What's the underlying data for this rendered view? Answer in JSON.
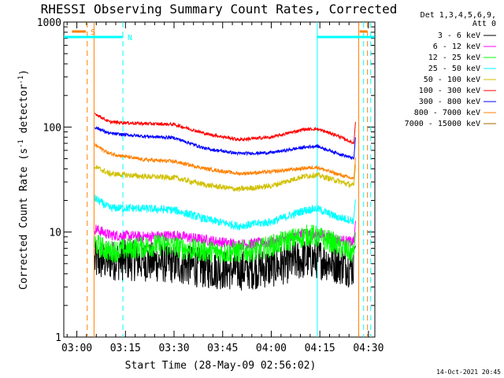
{
  "chart_data": {
    "type": "line",
    "title": "RHESSI Observing Summary Count Rates, Corrected",
    "xlabel": "Start Time (28-May-09 02:56:02)",
    "ylabel_parts": [
      "Corrected Count Rate (s",
      "-1",
      " detector",
      "-1",
      ")"
    ],
    "y_scale": "log",
    "ylim": [
      1,
      1000
    ],
    "y_ticks": [
      {
        "value": 1,
        "label": "1"
      },
      {
        "value": 10,
        "label": "10"
      },
      {
        "value": 100,
        "label": "100"
      },
      {
        "value": 1000,
        "label": "1000"
      }
    ],
    "xlim_minutes": [
      -4.03,
      91.97
    ],
    "x_ticks": [
      {
        "minutes": 0,
        "label": "03:00"
      },
      {
        "minutes": 15,
        "label": "03:15"
      },
      {
        "minutes": 30,
        "label": "03:30"
      },
      {
        "minutes": 45,
        "label": "03:45"
      },
      {
        "minutes": 60,
        "label": "04:00"
      },
      {
        "minutes": 75,
        "label": "04:15"
      },
      {
        "minutes": 90,
        "label": "04:30"
      }
    ],
    "legend_header": [
      "Det 1,3,4,5,6,9,",
      "Att 0"
    ],
    "legend_position": "right",
    "series": [
      {
        "name": "3 - 6 keV",
        "color": "#000000",
        "keypoints": [
          [
            5.5,
            5.2
          ],
          [
            10,
            5.4
          ],
          [
            20,
            5.3
          ],
          [
            30,
            5.0
          ],
          [
            40,
            4.5
          ],
          [
            50,
            4.3
          ],
          [
            60,
            4.6
          ],
          [
            70,
            5.5
          ],
          [
            75,
            5.6
          ],
          [
            80,
            5.0
          ],
          [
            85.5,
            4.6
          ]
        ],
        "noise": 0.45
      },
      {
        "name": "6 - 12 keV",
        "color": "#ff00ff",
        "keypoints": [
          [
            5.5,
            10.8
          ],
          [
            10,
            9.4
          ],
          [
            20,
            9.0
          ],
          [
            30,
            9.3
          ],
          [
            40,
            8.4
          ],
          [
            50,
            7.6
          ],
          [
            60,
            8.0
          ],
          [
            70,
            9.5
          ],
          [
            75,
            9.5
          ],
          [
            80,
            8.5
          ],
          [
            85.5,
            8.0
          ]
        ],
        "noise": 0.12
      },
      {
        "name": "12 - 25 keV",
        "color": "#00ff00",
        "keypoints": [
          [
            5.5,
            7.8
          ],
          [
            10,
            6.5
          ],
          [
            20,
            7.2
          ],
          [
            27,
            7.6
          ],
          [
            35,
            6.8
          ],
          [
            45,
            6.4
          ],
          [
            55,
            6.6
          ],
          [
            65,
            8.3
          ],
          [
            72,
            9.4
          ],
          [
            78,
            8.2
          ],
          [
            85.5,
            6.2
          ]
        ],
        "noise": 0.25
      },
      {
        "name": "25 - 50 keV",
        "color": "#00ffff",
        "keypoints": [
          [
            5.5,
            21.0
          ],
          [
            10,
            17.0
          ],
          [
            20,
            16.8
          ],
          [
            30,
            16.2
          ],
          [
            40,
            13.2
          ],
          [
            50,
            11.4
          ],
          [
            60,
            12.5
          ],
          [
            70,
            16.0
          ],
          [
            74,
            16.8
          ],
          [
            80,
            14.0
          ],
          [
            85.5,
            12.8
          ]
        ],
        "noise": 0.09
      },
      {
        "name": "50 - 100 keV",
        "color": "#d0c000",
        "keypoints": [
          [
            5.5,
            42.0
          ],
          [
            10,
            36.0
          ],
          [
            20,
            34.0
          ],
          [
            30,
            33.0
          ],
          [
            40,
            28.0
          ],
          [
            50,
            25.5
          ],
          [
            60,
            27.5
          ],
          [
            70,
            34.0
          ],
          [
            74,
            35.0
          ],
          [
            80,
            31.0
          ],
          [
            85.5,
            27.5
          ]
        ],
        "noise": 0.06
      },
      {
        "name": "100 - 300 keV",
        "color": "#ff0000",
        "keypoints": [
          [
            5.5,
            135.0
          ],
          [
            10,
            112.0
          ],
          [
            20,
            108.0
          ],
          [
            30,
            106.0
          ],
          [
            40,
            86.0
          ],
          [
            50,
            76.0
          ],
          [
            60,
            80.0
          ],
          [
            70,
            95.0
          ],
          [
            74,
            96.0
          ],
          [
            80,
            84.0
          ],
          [
            85.5,
            70.0
          ]
        ],
        "noise": 0.035
      },
      {
        "name": "300 - 800 keV",
        "color": "#0000ff",
        "keypoints": [
          [
            5.5,
            100.0
          ],
          [
            10,
            87.0
          ],
          [
            20,
            82.0
          ],
          [
            30,
            79.0
          ],
          [
            40,
            62.0
          ],
          [
            50,
            56.0
          ],
          [
            60,
            57.0
          ],
          [
            70,
            64.0
          ],
          [
            74,
            66.0
          ],
          [
            80,
            57.0
          ],
          [
            85.5,
            50.0
          ]
        ],
        "noise": 0.035
      },
      {
        "name": "800 - 7000 keV",
        "color": "#ff8000",
        "keypoints": [
          [
            5.5,
            68.0
          ],
          [
            10,
            56.0
          ],
          [
            20,
            49.0
          ],
          [
            30,
            47.0
          ],
          [
            40,
            40.0
          ],
          [
            50,
            36.0
          ],
          [
            60,
            37.5
          ],
          [
            70,
            40.5
          ],
          [
            74,
            41.5
          ],
          [
            80,
            36.0
          ],
          [
            85.5,
            32.0
          ]
        ],
        "noise": 0.04
      },
      {
        "name": "7000 - 15000 keV",
        "color": "#a06400",
        "keypoints": [],
        "noise": 0
      }
    ],
    "flags": [
      {
        "label": "S",
        "color": "#ff8000",
        "start_min": -1.5,
        "end_min": 2.8
      },
      {
        "label": "",
        "color": "#ff8000",
        "start_min": 87.3,
        "end_min": 89.7
      },
      {
        "label": "N",
        "color": "#00ffff",
        "start_min": -4.03,
        "end_min": 14.2
      },
      {
        "label": "",
        "color": "#00ffff",
        "start_min": 74.2,
        "end_min": 91.9
      }
    ],
    "vlines": [
      {
        "minutes": 3.2,
        "color": "#ff8000",
        "style": "dashed"
      },
      {
        "minutes": 5.3,
        "color": "#ff8000",
        "style": "solid"
      },
      {
        "minutes": 14.2,
        "color": "#00ffff",
        "style": "dashed"
      },
      {
        "minutes": 74.2,
        "color": "#00ffff",
        "style": "solid"
      },
      {
        "minutes": 87.0,
        "color": "#ff8000",
        "style": "solid"
      },
      {
        "minutes": 88.5,
        "color": "#00ffff",
        "style": "dashed"
      },
      {
        "minutes": 89.7,
        "color": "#ff8000",
        "style": "dashed"
      },
      {
        "minutes": 90.7,
        "color": "#00ffff",
        "style": "dashed"
      }
    ]
  },
  "footer": {
    "timestamp": "14-Oct-2021 20:45"
  }
}
